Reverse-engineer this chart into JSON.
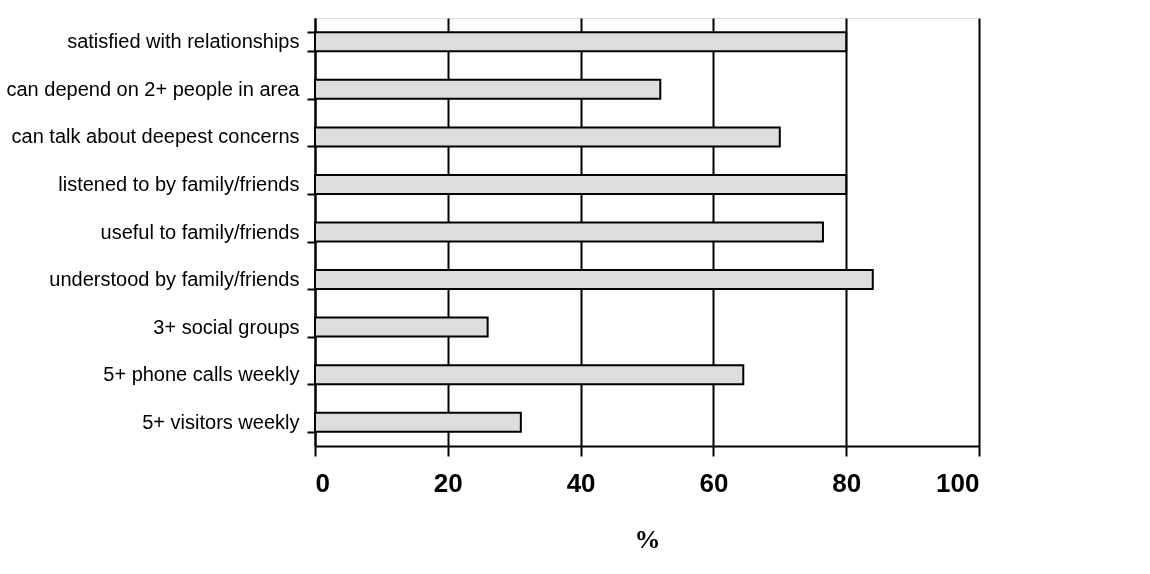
{
  "chart_data": {
    "type": "bar",
    "orientation": "horizontal",
    "xlabel": "%",
    "categories": [
      "satisfied with relationships",
      "can depend on 2+ people in area",
      "can talk about deepest concerns",
      "listened to by family/friends",
      "useful to family/friends",
      "understood by family/friends",
      "3+ social groups",
      "5+ phone calls weekly",
      "5+ visitors weekly"
    ],
    "values": [
      80,
      52,
      70,
      80,
      76.5,
      84,
      26,
      64.5,
      31
    ],
    "color": "#dddddd",
    "xlim": [
      0,
      100
    ],
    "xticks": [
      0,
      20,
      40,
      60,
      80,
      100
    ],
    "grid": "x"
  }
}
